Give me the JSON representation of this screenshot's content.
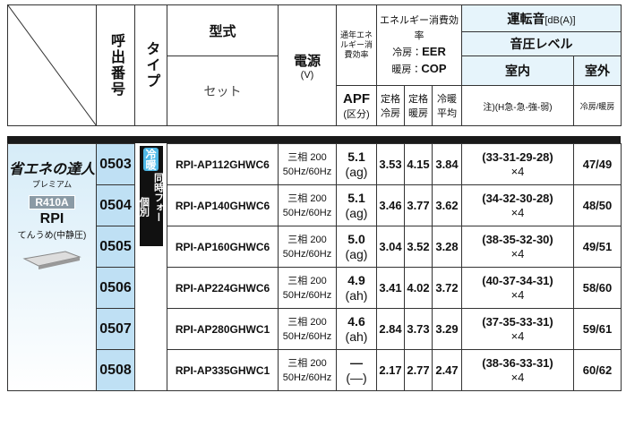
{
  "header": {
    "pnum": "呼出番号",
    "type": "タイプ",
    "model": "型式",
    "set": "セット",
    "power": "電源",
    "power_unit": "(V)",
    "annual": "通年エネルギー消費効率",
    "energy": "エネルギー消費効率",
    "cool_label": "冷房：",
    "cool_val": "EER",
    "heat_label": "暖房：",
    "heat_val": "COP",
    "apf": "APF",
    "apf_sub": "(区分)",
    "rated_cool": "定格冷房",
    "rated_heat": "定格暖房",
    "avg": "冷暖平均",
    "noise": "運転音",
    "noise_unit": "[dB(A)]",
    "spl": "音圧レベル",
    "indoor": "室内",
    "outdoor": "室外",
    "note": "注)(H急-急-強-弱)",
    "out_sub": "冷房/暖房"
  },
  "product": {
    "brand": "省エネの達人",
    "brand_sub": "プレミアム",
    "refrigerant": "R410A",
    "series": "RPI",
    "description": "てんうめ(中静圧)"
  },
  "type": {
    "mode": "冷暖",
    "variant_a": "同時フォー",
    "variant_b": "個別"
  },
  "rows": [
    {
      "code": "0503",
      "model": "RPI-AP112GHWC6",
      "power": "三相 200",
      "freq": "50Hz/60Hz",
      "apf": "5.1",
      "apf_class": "(ag)",
      "rated_cool": "3.53",
      "rated_heat": "4.15",
      "avg": "3.84",
      "indoor": "(33-31-29-28)",
      "mult": "×4",
      "outdoor": "47/49"
    },
    {
      "code": "0504",
      "model": "RPI-AP140GHWC6",
      "power": "三相 200",
      "freq": "50Hz/60Hz",
      "apf": "5.1",
      "apf_class": "(ag)",
      "rated_cool": "3.46",
      "rated_heat": "3.77",
      "avg": "3.62",
      "indoor": "(34-32-30-28)",
      "mult": "×4",
      "outdoor": "48/50"
    },
    {
      "code": "0505",
      "model": "RPI-AP160GHWC6",
      "power": "三相 200",
      "freq": "50Hz/60Hz",
      "apf": "5.0",
      "apf_class": "(ag)",
      "rated_cool": "3.04",
      "rated_heat": "3.52",
      "avg": "3.28",
      "indoor": "(38-35-32-30)",
      "mult": "×4",
      "outdoor": "49/51"
    },
    {
      "code": "0506",
      "model": "RPI-AP224GHWC6",
      "power": "三相 200",
      "freq": "50Hz/60Hz",
      "apf": "4.9",
      "apf_class": "(ah)",
      "rated_cool": "3.41",
      "rated_heat": "4.02",
      "avg": "3.72",
      "indoor": "(40-37-34-31)",
      "mult": "×4",
      "outdoor": "58/60"
    },
    {
      "code": "0507",
      "model": "RPI-AP280GHWC1",
      "power": "三相 200",
      "freq": "50Hz/60Hz",
      "apf": "4.6",
      "apf_class": "(ah)",
      "rated_cool": "2.84",
      "rated_heat": "3.73",
      "avg": "3.29",
      "indoor": "(37-35-33-31)",
      "mult": "×4",
      "outdoor": "59/61"
    },
    {
      "code": "0508",
      "model": "RPI-AP335GHWC1",
      "power": "三相 200",
      "freq": "50Hz/60Hz",
      "apf": "—",
      "apf_class": "(—)",
      "rated_cool": "2.17",
      "rated_heat": "2.77",
      "avg": "2.47",
      "indoor": "(38-36-33-31)",
      "mult": "×4",
      "outdoor": "60/62"
    }
  ]
}
